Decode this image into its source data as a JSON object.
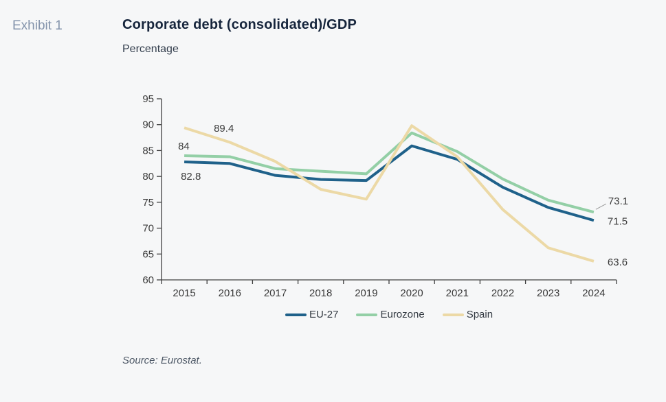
{
  "header": {
    "exhibit_label": "Exhibit 1",
    "title": "Corporate debt (consolidated)/GDP",
    "subtitle": "Percentage"
  },
  "source": {
    "text": "Source: Eurostat."
  },
  "style": {
    "background": "#f6f7f8",
    "axis_color": "#3f3f3f",
    "label_color": "#3b3b3b",
    "leader_color": "#9a9a9a"
  },
  "chart_data": {
    "type": "line",
    "title": "Corporate debt (consolidated)/GDP",
    "ylabel": "Percentage",
    "x": [
      2015,
      2016,
      2017,
      2018,
      2019,
      2020,
      2021,
      2022,
      2023,
      2024
    ],
    "series": [
      {
        "name": "EU-27",
        "color": "#1f618a",
        "values": [
          82.8,
          82.5,
          80.2,
          79.4,
          79.2,
          85.9,
          83.3,
          77.9,
          74.0,
          71.5
        ]
      },
      {
        "name": "Eurozone",
        "color": "#93cfa6",
        "values": [
          84.0,
          83.8,
          81.5,
          81.0,
          80.5,
          88.4,
          84.8,
          79.5,
          75.4,
          73.1
        ]
      },
      {
        "name": "Spain",
        "color": "#ecd9a6",
        "values": [
          89.4,
          86.6,
          82.9,
          77.5,
          75.6,
          89.8,
          83.8,
          73.6,
          66.2,
          63.6
        ]
      }
    ],
    "ylim": [
      60,
      95
    ],
    "yticks": [
      60,
      65,
      70,
      75,
      80,
      85,
      90,
      95
    ],
    "grid": false,
    "legend_position": "bottom",
    "annotations": [
      {
        "series": "Spain",
        "x": 2015,
        "text": "89.4",
        "position": "start-right"
      },
      {
        "series": "Eurozone",
        "x": 2015,
        "text": "84",
        "position": "start-above"
      },
      {
        "series": "EU-27",
        "x": 2015,
        "text": "82.8",
        "position": "start-below"
      },
      {
        "series": "Eurozone",
        "x": 2024,
        "text": "73.1",
        "position": "end-right-leader"
      },
      {
        "series": "EU-27",
        "x": 2024,
        "text": "71.5",
        "position": "end-right"
      },
      {
        "series": "Spain",
        "x": 2024,
        "text": "63.6",
        "position": "end-right"
      }
    ]
  }
}
